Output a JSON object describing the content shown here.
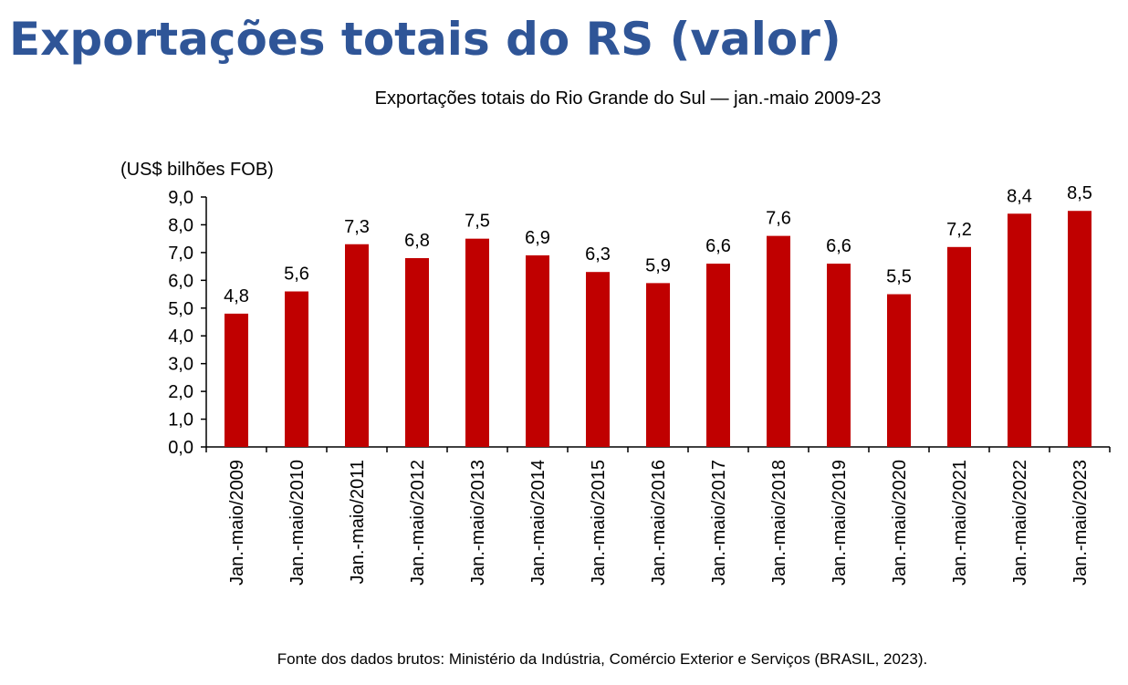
{
  "header": {
    "title": "Exportações totais do RS (valor)"
  },
  "chart_data": {
    "type": "bar",
    "title": "Exportações totais do Rio Grande do Sul — jan.-maio 2009-23",
    "ylabel": "(US$ bilhões FOB)",
    "xlabel": "",
    "ylim": [
      0,
      9
    ],
    "yticks": [
      "0,0",
      "1,0",
      "2,0",
      "3,0",
      "4,0",
      "5,0",
      "6,0",
      "7,0",
      "8,0",
      "9,0"
    ],
    "categories": [
      "Jan.-maio/2009",
      "Jan.-maio/2010",
      "Jan.-maio/2011",
      "Jan.-maio/2012",
      "Jan.-maio/2013",
      "Jan.-maio/2014",
      "Jan.-maio/2015",
      "Jan.-maio/2016",
      "Jan.-maio/2017",
      "Jan.-maio/2018",
      "Jan.-maio/2019",
      "Jan.-maio/2020",
      "Jan.-maio/2021",
      "Jan.-maio/2022",
      "Jan.-maio/2023"
    ],
    "values": [
      4.8,
      5.6,
      7.3,
      6.8,
      7.5,
      6.9,
      6.3,
      5.9,
      6.6,
      7.6,
      6.6,
      5.5,
      7.2,
      8.4,
      8.5
    ],
    "data_labels": [
      "4,8",
      "5,6",
      "7,3",
      "6,8",
      "7,5",
      "6,9",
      "6,3",
      "5,9",
      "6,6",
      "7,6",
      "6,6",
      "5,5",
      "7,2",
      "8,4",
      "8,5"
    ],
    "grid": false,
    "legend": "none",
    "bar_color": "#c00000"
  },
  "footer": {
    "source": "Fonte dos dados brutos: Ministério da Indústria, Comércio Exterior e Serviços (BRASIL, 2023)."
  },
  "colors": {
    "title": "#2f5597",
    "bars": "#c00000",
    "axis": "#000000"
  }
}
